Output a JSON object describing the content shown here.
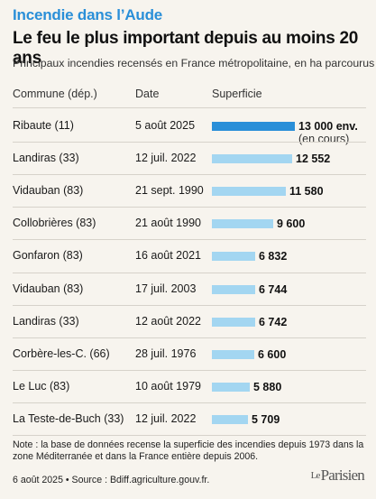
{
  "header": {
    "kicker": "Incendie dans l’Aude",
    "title": "Le feu le plus important depuis au moins 20 ans",
    "subtitle": "Principaux incendies recensés en France métropolitaine, en ha parcourus"
  },
  "columns": {
    "commune": "Commune (dép.)",
    "date": "Date",
    "superficie": "Superficie"
  },
  "colors": {
    "highlight": "#2a8fd8",
    "bar": "#a3d6f1"
  },
  "chart_data": {
    "type": "bar",
    "orientation": "horizontal",
    "title": "Le feu le plus important depuis au moins 20 ans",
    "subtitle": "Principaux incendies recensés en France métropolitaine, en ha parcourus",
    "categories": [
      "Ribaute (11)",
      "Landiras (33)",
      "Vidauban (83)",
      "Collobrières (83)",
      "Gonfaron (83)",
      "Vidauban (83)",
      "Landiras (33)",
      "Corbère-les-C. (66)",
      "Le Luc (83)",
      "La Teste-de-Buch (33)"
    ],
    "dates": [
      "5 août 2025",
      "12 juil. 2022",
      "21 sept. 1990",
      "21 août 1990",
      "16 août 2021",
      "17 juil. 2003",
      "12 août 2022",
      "28 juil. 1976",
      "10 août 1979",
      "12 juil. 2022"
    ],
    "values": [
      13000,
      12552,
      11580,
      9600,
      6832,
      6744,
      6742,
      6600,
      5880,
      5709
    ],
    "value_labels": [
      "13 000 env.",
      "12 552",
      "11 580",
      "9 600",
      "6 832",
      "6 744",
      "6 742",
      "6 600",
      "5 880",
      "5 709"
    ],
    "value_sublabels": [
      "(en cours)",
      "",
      "",
      "",
      "",
      "",
      "",
      "",
      "",
      ""
    ],
    "highlight_index": 0,
    "xlim": [
      0,
      13000
    ]
  },
  "note": "Note : la base de données recense la superficie des incendies depuis 1973 dans la zone Méditerranée et dans la France entière depuis 2006.",
  "footer": "6 août 2025 • Source : Bdiff.agriculture.gouv.fr.",
  "logo": {
    "le": "Le",
    "name": "Parisien"
  }
}
